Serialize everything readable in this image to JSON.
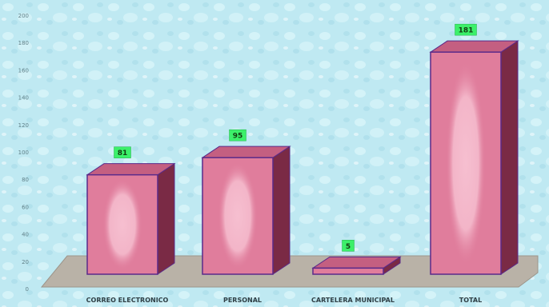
{
  "chart_data": {
    "type": "bar",
    "title": "",
    "xlabel": "",
    "ylabel": "",
    "categories": [
      "CORREO ELECTRONICO",
      "PERSONAL",
      "CARTELERA MUNICIPAL",
      "TOTAL"
    ],
    "values": [
      81,
      95,
      5,
      181
    ],
    "value_labels": [
      "81",
      "95",
      "5",
      "181"
    ],
    "ylim": [
      0,
      200
    ],
    "yticks": [
      "0",
      "20",
      "40",
      "60",
      "80",
      "100",
      "120",
      "140",
      "160",
      "180",
      "200"
    ],
    "grid": false,
    "legend": "none",
    "style": {
      "bar_front": "#e07d9c",
      "bar_highlight": "#f6bfd0",
      "bar_side": "#7a2a45",
      "bar_top": "#c45f81",
      "bar_outline": "#5a2a8a",
      "label_bg": "#3cf06a",
      "label_text": "#123d12",
      "floor": "#b9b2a7",
      "background_base": "#bfe9f2",
      "background_bubble": "#d9f5fa"
    }
  }
}
